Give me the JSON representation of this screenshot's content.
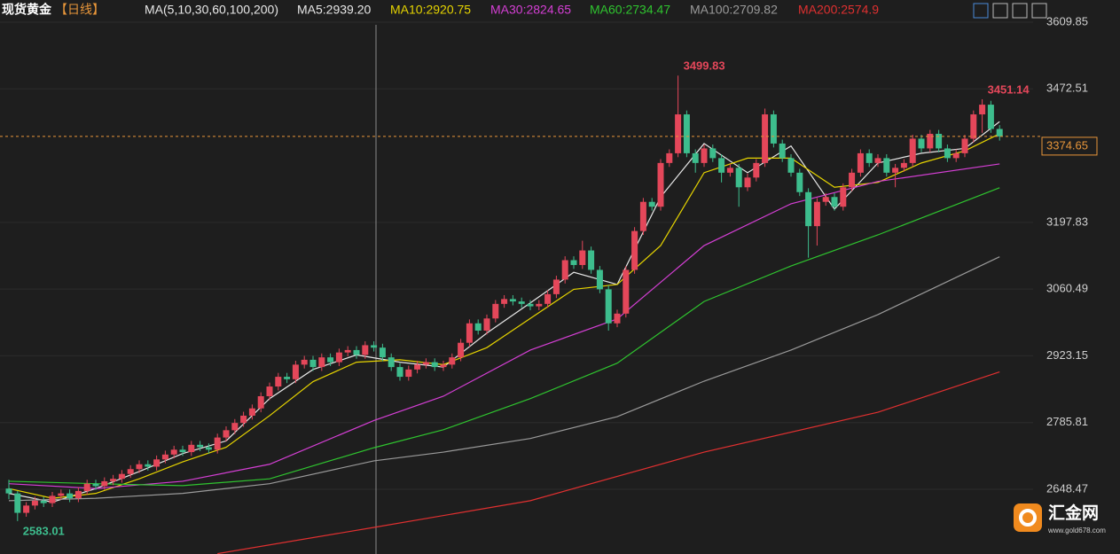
{
  "chart_data": {
    "type": "candlestick",
    "title": "现货黄金",
    "period": "【日线】",
    "indicator": "MA(5,10,30,60,100,200)",
    "up_color": "#e4475a",
    "down_color": "#3dbd8d",
    "ylim": [
      2515.3,
      3655.4
    ],
    "yticks": [
      2648.47,
      2785.81,
      2923.15,
      3060.49,
      3197.83,
      3472.51,
      3609.85
    ],
    "grid": true,
    "ohlc": [
      [
        2650,
        2668,
        2628,
        2640
      ],
      [
        2640,
        2645,
        2583.01,
        2600
      ],
      [
        2600,
        2622,
        2592,
        2615
      ],
      [
        2615,
        2633,
        2607,
        2625
      ],
      [
        2625,
        2633,
        2612,
        2620
      ],
      [
        2620,
        2643,
        2612,
        2635
      ],
      [
        2635,
        2648,
        2627,
        2640
      ],
      [
        2640,
        2648,
        2622,
        2630
      ],
      [
        2630,
        2653,
        2622,
        2645
      ],
      [
        2645,
        2668,
        2637,
        2660
      ],
      [
        2660,
        2668,
        2647,
        2655
      ],
      [
        2655,
        2673,
        2647,
        2665
      ],
      [
        2665,
        2678,
        2657,
        2670
      ],
      [
        2670,
        2688,
        2662,
        2680
      ],
      [
        2680,
        2698,
        2672,
        2690
      ],
      [
        2690,
        2708,
        2682,
        2700
      ],
      [
        2700,
        2708,
        2687,
        2695
      ],
      [
        2695,
        2718,
        2687,
        2710
      ],
      [
        2710,
        2728,
        2702,
        2720
      ],
      [
        2720,
        2738,
        2712,
        2730
      ],
      [
        2730,
        2738,
        2717,
        2725
      ],
      [
        2725,
        2748,
        2717,
        2740
      ],
      [
        2740,
        2748,
        2727,
        2735
      ],
      [
        2735,
        2743,
        2722,
        2730
      ],
      [
        2730,
        2763,
        2722,
        2755
      ],
      [
        2755,
        2778,
        2747,
        2770
      ],
      [
        2770,
        2793,
        2762,
        2785
      ],
      [
        2785,
        2808,
        2777,
        2800
      ],
      [
        2800,
        2823,
        2792,
        2815
      ],
      [
        2815,
        2848,
        2807,
        2840
      ],
      [
        2840,
        2868,
        2832,
        2860
      ],
      [
        2860,
        2888,
        2852,
        2880
      ],
      [
        2880,
        2888,
        2867,
        2875
      ],
      [
        2875,
        2913,
        2867,
        2905
      ],
      [
        2905,
        2923,
        2897,
        2915
      ],
      [
        2915,
        2923,
        2892,
        2900
      ],
      [
        2900,
        2928,
        2892,
        2920
      ],
      [
        2920,
        2928,
        2902,
        2910
      ],
      [
        2910,
        2938,
        2902,
        2930
      ],
      [
        2930,
        2943,
        2922,
        2935
      ],
      [
        2935,
        2943,
        2917,
        2925
      ],
      [
        2925,
        2953,
        2917,
        2945
      ],
      [
        2945,
        2953,
        2932,
        2940
      ],
      [
        2940,
        2948,
        2912,
        2920
      ],
      [
        2920,
        2928,
        2892,
        2900
      ],
      [
        2900,
        2908,
        2872,
        2880
      ],
      [
        2880,
        2903,
        2872,
        2895
      ],
      [
        2895,
        2913,
        2887,
        2905
      ],
      [
        2905,
        2918,
        2897,
        2910
      ],
      [
        2910,
        2918,
        2892,
        2900
      ],
      [
        2900,
        2913,
        2892,
        2905
      ],
      [
        2905,
        2928,
        2897,
        2920
      ],
      [
        2920,
        2958,
        2912,
        2950
      ],
      [
        2950,
        2998,
        2942,
        2990
      ],
      [
        2990,
        2998,
        2967,
        2975
      ],
      [
        2975,
        3008,
        2967,
        3000
      ],
      [
        3000,
        3038,
        2992,
        3030
      ],
      [
        3030,
        3048,
        3022,
        3040
      ],
      [
        3040,
        3048,
        3027,
        3035
      ],
      [
        3035,
        3043,
        3022,
        3030
      ],
      [
        3030,
        3038,
        3017,
        3025
      ],
      [
        3025,
        3038,
        3017,
        3030
      ],
      [
        3030,
        3058,
        3022,
        3050
      ],
      [
        3050,
        3088,
        3042,
        3080
      ],
      [
        3080,
        3128,
        3072,
        3120
      ],
      [
        3120,
        3128,
        3102,
        3110
      ],
      [
        3110,
        3160,
        3102,
        3140
      ],
      [
        3140,
        3148,
        3092,
        3100
      ],
      [
        3100,
        3108,
        3052,
        3060
      ],
      [
        3060,
        3068,
        2975,
        2990
      ],
      [
        2990,
        3018,
        2982,
        3010
      ],
      [
        3010,
        3108,
        3002,
        3100
      ],
      [
        3100,
        3188,
        3092,
        3180
      ],
      [
        3180,
        3248,
        3172,
        3240
      ],
      [
        3240,
        3248,
        3222,
        3230
      ],
      [
        3230,
        3328,
        3222,
        3320
      ],
      [
        3320,
        3348,
        3312,
        3340
      ],
      [
        3340,
        3499.83,
        3332,
        3420
      ],
      [
        3420,
        3428,
        3332,
        3340
      ],
      [
        3340,
        3348,
        3300,
        3320
      ],
      [
        3320,
        3358,
        3312,
        3350
      ],
      [
        3350,
        3358,
        3322,
        3330
      ],
      [
        3330,
        3338,
        3280,
        3300
      ],
      [
        3300,
        3318,
        3292,
        3310
      ],
      [
        3310,
        3318,
        3230,
        3270
      ],
      [
        3270,
        3298,
        3262,
        3290
      ],
      [
        3290,
        3328,
        3282,
        3320
      ],
      [
        3320,
        3432,
        3312,
        3420
      ],
      [
        3420,
        3428,
        3352,
        3360
      ],
      [
        3360,
        3368,
        3322,
        3330
      ],
      [
        3330,
        3338,
        3292,
        3300
      ],
      [
        3300,
        3308,
        3252,
        3260
      ],
      [
        3260,
        3268,
        3125,
        3190
      ],
      [
        3190,
        3248,
        3150,
        3240
      ],
      [
        3240,
        3258,
        3232,
        3250
      ],
      [
        3250,
        3258,
        3222,
        3230
      ],
      [
        3230,
        3278,
        3222,
        3270
      ],
      [
        3270,
        3308,
        3262,
        3300
      ],
      [
        3300,
        3348,
        3292,
        3340
      ],
      [
        3340,
        3348,
        3312,
        3320
      ],
      [
        3320,
        3338,
        3312,
        3330
      ],
      [
        3330,
        3338,
        3292,
        3300
      ],
      [
        3300,
        3318,
        3270,
        3310
      ],
      [
        3310,
        3328,
        3302,
        3320
      ],
      [
        3320,
        3378,
        3312,
        3370
      ],
      [
        3370,
        3378,
        3342,
        3350
      ],
      [
        3350,
        3388,
        3342,
        3380
      ],
      [
        3380,
        3388,
        3342,
        3350
      ],
      [
        3350,
        3358,
        3322,
        3330
      ],
      [
        3330,
        3348,
        3322,
        3340
      ],
      [
        3340,
        3378,
        3332,
        3370
      ],
      [
        3370,
        3428,
        3362,
        3420
      ],
      [
        3420,
        3451.14,
        3382,
        3440
      ],
      [
        3440,
        3448,
        3382,
        3390
      ],
      [
        3390,
        3398,
        3366,
        3374.65
      ]
    ],
    "series": [
      {
        "name": "MA5:2939.20",
        "color": "#e8e8e8",
        "x": [
          0,
          5,
          10,
          15,
          20,
          25,
          30,
          35,
          40,
          45,
          50,
          55,
          60,
          65,
          70,
          75,
          80,
          85,
          90,
          95,
          100,
          105,
          110,
          114
        ],
        "values": [
          2640,
          2622,
          2650,
          2685,
          2722,
          2748,
          2835,
          2895,
          2925,
          2910,
          2900,
          2970,
          3032,
          3095,
          3070,
          3250,
          3360,
          3300,
          3355,
          3225,
          3320,
          3340,
          3350,
          3405
        ]
      },
      {
        "name": "MA10:2920.75",
        "color": "#e6d400",
        "x": [
          0,
          5,
          10,
          15,
          20,
          25,
          30,
          35,
          40,
          45,
          50,
          55,
          60,
          65,
          70,
          75,
          80,
          85,
          90,
          95,
          100,
          105,
          110,
          114
        ],
        "values": [
          2650,
          2630,
          2640,
          2670,
          2705,
          2735,
          2800,
          2870,
          2910,
          2915,
          2905,
          2940,
          3000,
          3060,
          3070,
          3150,
          3300,
          3330,
          3330,
          3270,
          3280,
          3320,
          3345,
          3380
        ]
      },
      {
        "name": "MA30:2824.65",
        "color": "#d43fd4",
        "x": [
          0,
          10,
          20,
          30,
          42,
          50,
          60,
          70,
          80,
          90,
          100,
          114
        ],
        "values": [
          2660,
          2650,
          2665,
          2700,
          2790,
          2840,
          2935,
          2999,
          3150,
          3236,
          3282,
          3318
        ]
      },
      {
        "name": "MA60:2734.47",
        "color": "#2fc42f",
        "x": [
          0,
          10,
          20,
          30,
          42,
          50,
          60,
          70,
          80,
          90,
          100,
          114
        ],
        "values": [
          2665,
          2660,
          2656,
          2670,
          2734,
          2771,
          2835,
          2908,
          3035,
          3108,
          3172,
          3269
        ]
      },
      {
        "name": "MA100:2709.82",
        "color": "#9a9a9a",
        "x": [
          0,
          10,
          20,
          30,
          42,
          50,
          60,
          70,
          80,
          90,
          100,
          114
        ],
        "values": [
          2625,
          2630,
          2640,
          2660,
          2707,
          2725,
          2753,
          2798,
          2871,
          2935,
          3008,
          3127
        ]
      },
      {
        "name": "MA200:2574.9",
        "color": "#e03030",
        "x": [
          24,
          42,
          60,
          80,
          100,
          114
        ],
        "values": [
          2516,
          2570,
          2625,
          2725,
          2807,
          2890
        ]
      }
    ],
    "watermark": "汇金网",
    "watermark_url": "www.gold678.com"
  }
}
